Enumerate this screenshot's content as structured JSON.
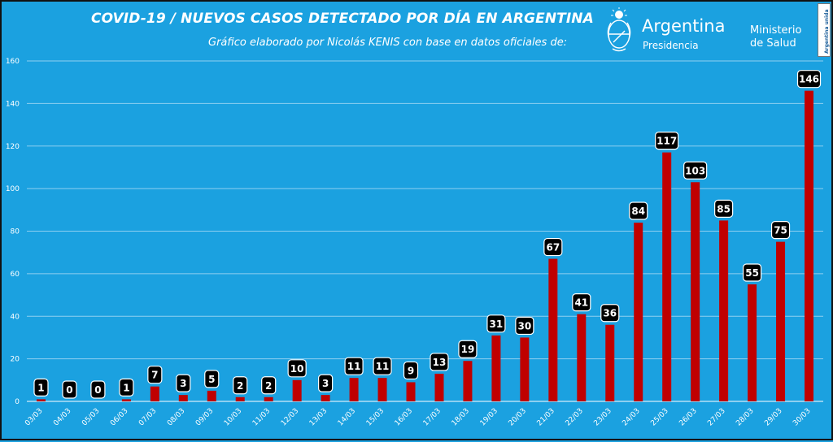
{
  "colors": {
    "background": "#1ba1e0",
    "bar": "#c00000",
    "gridline": "#8fd0f0",
    "label_box": "#000000",
    "text": "#ffffff"
  },
  "header": {
    "title": "COVID-19  /  NUEVOS CASOS DETECTADO POR DÍA EN ARGENTINA",
    "subtitle": "Gráfico elaborado por Nicolás KENIS con base en datos oficiales de:"
  },
  "logos": {
    "emblem_icon": "argentina-coat-of-arms-icon",
    "name": "Argentina",
    "subname": "Presidencia",
    "ministry_line1": "Ministerio",
    "ministry_line2": "de Salud",
    "badge_text": "Argentina unida"
  },
  "chart_data": {
    "type": "bar",
    "title": "COVID-19  /  NUEVOS CASOS DETECTADO POR DÍA EN ARGENTINA",
    "xlabel": "",
    "ylabel": "",
    "ylim": [
      0,
      160
    ],
    "yticks": [
      0,
      20,
      40,
      60,
      80,
      100,
      120,
      140,
      160
    ],
    "grid": true,
    "legend": "none",
    "data_labels": true,
    "categories": [
      "03/03",
      "04/03",
      "05/03",
      "06/03",
      "07/03",
      "08/03",
      "09/03",
      "10/03",
      "11/03",
      "12/03",
      "13/03",
      "14/03",
      "15/03",
      "16/03",
      "17/03",
      "18/03",
      "19/03",
      "20/03",
      "21/03",
      "22/03",
      "23/03",
      "24/03",
      "25/03",
      "26/03",
      "27/03",
      "28/03",
      "29/03",
      "30/03"
    ],
    "values": [
      1,
      0,
      0,
      1,
      7,
      3,
      5,
      2,
      2,
      10,
      3,
      11,
      11,
      9,
      13,
      19,
      31,
      30,
      67,
      41,
      36,
      84,
      117,
      103,
      85,
      55,
      75,
      146
    ]
  }
}
